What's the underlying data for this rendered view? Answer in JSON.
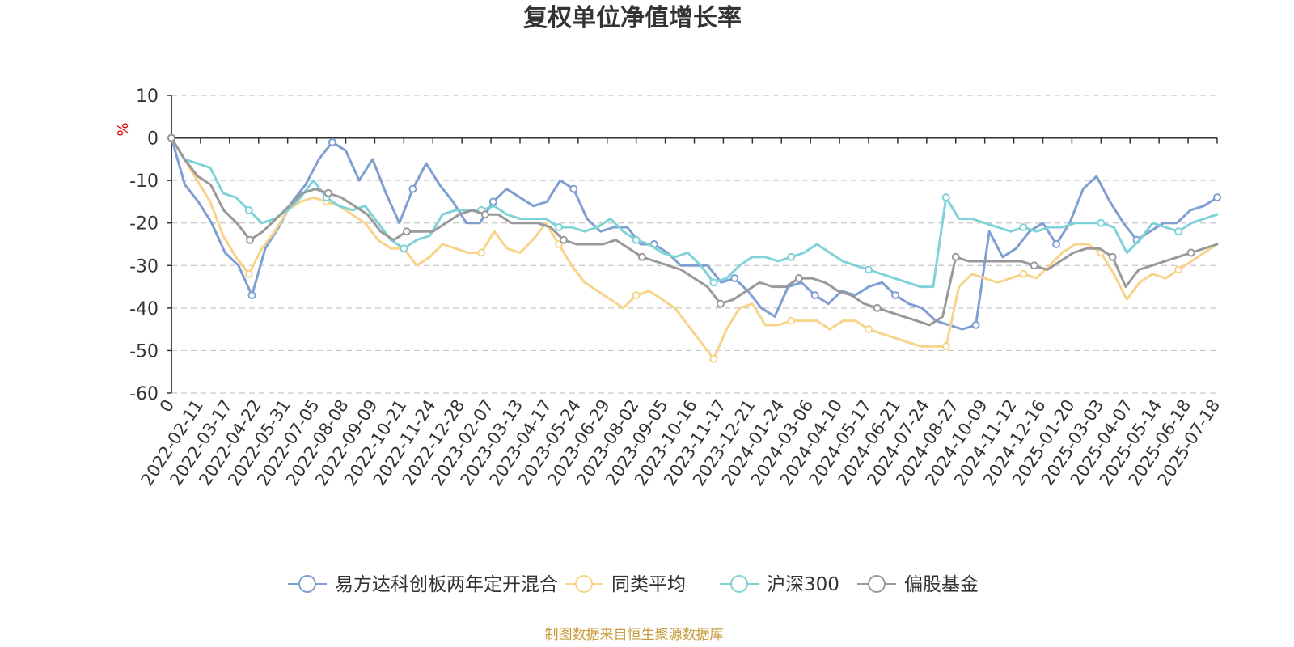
{
  "chart_data": {
    "type": "line",
    "title": "复权单位净值增长率",
    "ylabel": "%",
    "ylim": [
      -60,
      10
    ],
    "yticks": [
      10,
      0,
      -10,
      -20,
      -30,
      -40,
      -50,
      -60
    ],
    "grid": true,
    "legend_position": "bottom",
    "source": "制图数据来自恒生聚源数据库",
    "xticks": [
      "0",
      "2022-02-11",
      "2022-03-17",
      "2022-04-22",
      "2022-05-31",
      "2022-07-05",
      "2022-08-08",
      "2022-09-09",
      "2022-10-21",
      "2022-11-24",
      "2022-12-28",
      "2023-02-07",
      "2023-03-13",
      "2023-04-17",
      "2023-05-24",
      "2023-06-29",
      "2023-08-02",
      "2023-09-05",
      "2023-10-16",
      "2023-11-17",
      "2023-12-21",
      "2024-01-24",
      "2024-03-06",
      "2024-04-10",
      "2024-05-17",
      "2024-06-21",
      "2024-07-24",
      "2024-08-27",
      "2024-10-09",
      "2024-11-12",
      "2024-12-16",
      "2025-01-20",
      "2025-03-03",
      "2025-04-07",
      "2025-05-14",
      "2025-06-18",
      "2025-07-18"
    ],
    "series": [
      {
        "name": "易方达科创板两年定开混合",
        "color": "#7f9fd3",
        "values": [
          0,
          -11,
          -15,
          -20,
          -27,
          -30,
          -37,
          -26,
          -21,
          -15,
          -11,
          -5,
          -1,
          -3,
          -10,
          -5,
          -13,
          -20,
          -12,
          -6,
          -11,
          -15,
          -20,
          -20,
          -15,
          -12,
          -14,
          -16,
          -15,
          -10,
          -12,
          -19,
          -22,
          -21,
          -21,
          -25,
          -25,
          -27,
          -30,
          -30,
          -30,
          -34,
          -33,
          -36,
          -40,
          -42,
          -35,
          -34,
          -37,
          -39,
          -36,
          -37,
          -35,
          -34,
          -37,
          -39,
          -40,
          -43,
          -44,
          -45,
          -44,
          -22,
          -28,
          -26,
          -22,
          -20,
          -25,
          -20,
          -12,
          -9,
          -15,
          -20,
          -24,
          -22,
          -20,
          -20,
          -17,
          -16,
          -14
        ]
      },
      {
        "name": "同类平均",
        "color": "#f8d48a",
        "values": [
          0,
          -5,
          -10,
          -15,
          -23,
          -28,
          -32,
          -26,
          -22,
          -17,
          -15,
          -14,
          -15,
          -16,
          -18,
          -20,
          -24,
          -26,
          -26,
          -30,
          -28,
          -25,
          -26,
          -27,
          -27,
          -22,
          -26,
          -27,
          -24,
          -20,
          -25,
          -30,
          -34,
          -36,
          -38,
          -40,
          -37,
          -36,
          -38,
          -40,
          -44,
          -48,
          -52,
          -45,
          -40,
          -39,
          -44,
          -44,
          -43,
          -43,
          -43,
          -45,
          -43,
          -43,
          -45,
          -46,
          -47,
          -48,
          -49,
          -49,
          -49,
          -35,
          -32,
          -33,
          -34,
          -33,
          -32,
          -33,
          -30,
          -27,
          -25,
          -25,
          -27,
          -32,
          -38,
          -34,
          -32,
          -33,
          -31,
          -29,
          -27,
          -25
        ]
      },
      {
        "name": "沪深300",
        "color": "#7fd3d8",
        "values": [
          0,
          -5,
          -6,
          -7,
          -13,
          -14,
          -17,
          -20,
          -19,
          -17,
          -14,
          -10,
          -14,
          -16,
          -17,
          -16,
          -20,
          -24,
          -26,
          -24,
          -23,
          -18,
          -17,
          -17,
          -17,
          -16,
          -18,
          -19,
          -19,
          -19,
          -21,
          -21,
          -22,
          -21,
          -19,
          -22,
          -24,
          -25,
          -27,
          -28,
          -27,
          -30,
          -34,
          -33,
          -30,
          -28,
          -28,
          -29,
          -28,
          -27,
          -25,
          -27,
          -29,
          -30,
          -31,
          -32,
          -33,
          -34,
          -35,
          -35,
          -14,
          -19,
          -19,
          -20,
          -21,
          -22,
          -21,
          -22,
          -21,
          -21,
          -20,
          -20,
          -20,
          -21,
          -27,
          -24,
          -20,
          -21,
          -22,
          -20,
          -19,
          -18
        ]
      },
      {
        "name": "偏股基金",
        "color": "#999999",
        "values": [
          0,
          -5,
          -9,
          -11,
          -17,
          -20,
          -24,
          -22,
          -19,
          -16,
          -13,
          -12,
          -13,
          -14,
          -16,
          -18,
          -22,
          -24,
          -22,
          -22,
          -22,
          -20,
          -18,
          -17,
          -18,
          -18,
          -20,
          -20,
          -20,
          -21,
          -24,
          -25,
          -25,
          -25,
          -24,
          -26,
          -28,
          -29,
          -30,
          -31,
          -33,
          -35,
          -39,
          -38,
          -36,
          -34,
          -35,
          -35,
          -33,
          -33,
          -34,
          -36,
          -37,
          -39,
          -40,
          -41,
          -42,
          -43,
          -44,
          -42,
          -28,
          -29,
          -29,
          -29,
          -29,
          -29,
          -30,
          -31,
          -29,
          -27,
          -26,
          -26,
          -28,
          -35,
          -31,
          -30,
          -29,
          -28,
          -27,
          -26,
          -25
        ]
      }
    ]
  }
}
